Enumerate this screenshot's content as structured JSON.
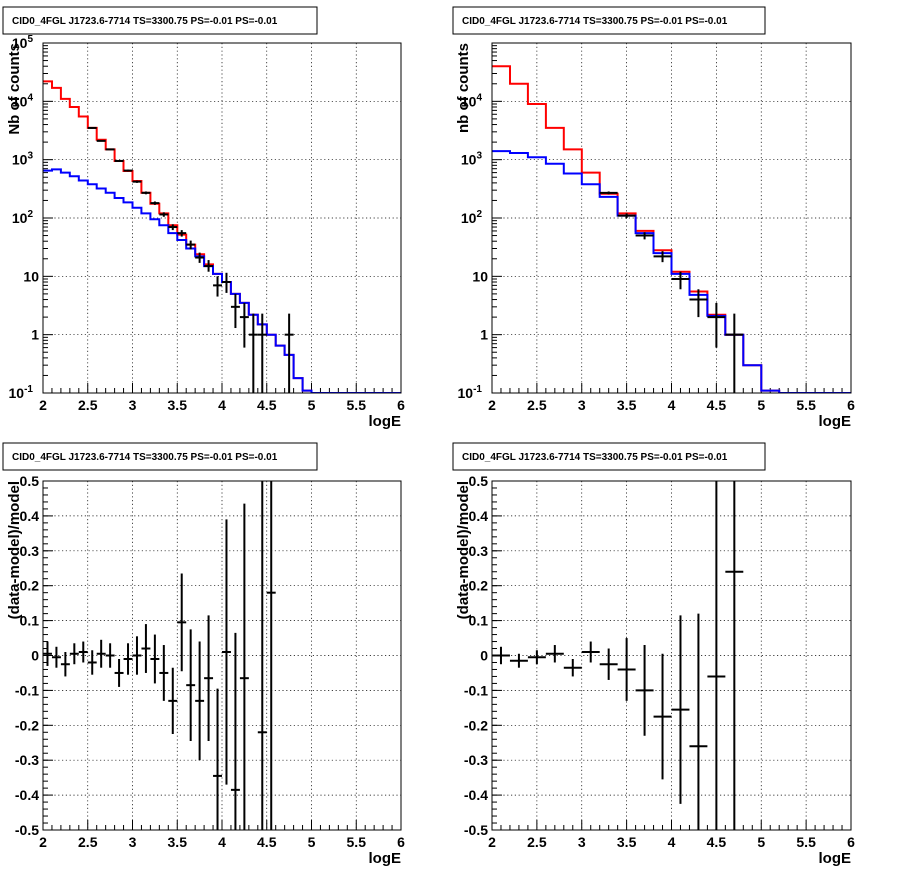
{
  "panel_title": "CID0_4FGL J1723.6-7714 TS=3300.75 PS=-0.01 PS=-0.01",
  "colors": {
    "model_total": "#ff0000",
    "model_background": "#0000ff",
    "data": "#000000"
  },
  "chart_data": [
    {
      "type": "line",
      "subtype": "histogram with error bars",
      "title": "CID0_4FGL J1723.6-7714 TS=3300.75 PS=-0.01 PS=-0.01",
      "xlabel": "logE",
      "ylabel": "Nb of counts",
      "xlim": [
        2,
        6
      ],
      "ylim": [
        0.1,
        100000
      ],
      "yscale": "log",
      "grid": true,
      "x_ticks": [
        "2",
        "2.5",
        "3",
        "3.5",
        "4",
        "4.5",
        "5",
        "5.5",
        "6"
      ],
      "y_ticks": [
        "10^-1",
        "1",
        "10",
        "10^2",
        "10^3",
        "10^4",
        "10^5"
      ],
      "bin_edges": [
        2.0,
        2.1,
        2.2,
        2.3,
        2.4,
        2.5,
        2.6,
        2.7,
        2.8,
        2.9,
        3.0,
        3.1,
        3.2,
        3.3,
        3.4,
        3.5,
        3.6,
        3.7,
        3.8,
        3.9,
        4.0,
        4.1,
        4.2,
        4.3,
        4.4,
        4.5,
        4.6,
        4.7,
        4.8,
        4.9,
        5.0,
        5.1,
        5.2,
        5.3,
        5.4,
        5.5,
        5.6,
        5.7,
        5.8,
        5.9,
        6.0
      ],
      "series": [
        {
          "style": "step",
          "color": "#ff0000",
          "values": [
            22000,
            17000,
            11000,
            8000,
            5500,
            3500,
            2200,
            1500,
            950,
            640,
            430,
            270,
            175,
            120,
            75,
            52,
            35,
            24,
            16,
            11,
            8,
            5,
            3.5,
            2.2,
            1.5,
            1,
            0.65,
            0.45,
            0.18,
            0.11,
            0.1,
            0.1,
            0.1,
            0.1,
            0.1,
            0.1,
            0.1,
            0.1,
            0.1,
            0.1
          ]
        },
        {
          "style": "step",
          "color": "#0000ff",
          "values": [
            650,
            680,
            600,
            520,
            440,
            380,
            320,
            270,
            220,
            185,
            150,
            120,
            95,
            75,
            55,
            42,
            30,
            22,
            15,
            11,
            8,
            5,
            3.5,
            2.2,
            1.5,
            1,
            0.65,
            0.45,
            0.18,
            0.11,
            0.1,
            0.1,
            0.1,
            0.1,
            0.1,
            0.1,
            0.1,
            0.1,
            0.1,
            0.1
          ]
        },
        {
          "style": "points",
          "color": "#000000",
          "x": [
            2.55,
            2.65,
            2.75,
            2.85,
            2.95,
            3.05,
            3.15,
            3.25,
            3.35,
            3.45,
            3.55,
            3.65,
            3.75,
            3.85,
            3.95,
            4.05,
            4.15,
            4.25,
            4.35,
            4.45,
            4.75
          ],
          "y": [
            3500,
            2100,
            1500,
            950,
            650,
            420,
            270,
            180,
            115,
            70,
            55,
            35,
            21,
            15,
            7,
            8,
            3,
            2,
            1,
            1,
            1
          ],
          "y_low": [
            3400,
            2050,
            1460,
            920,
            625,
            400,
            255,
            168,
            105,
            62,
            48,
            29,
            17,
            12,
            4.5,
            5.2,
            1.3,
            0.6,
            0.1,
            0.1,
            0.1
          ],
          "y_high": [
            3600,
            2150,
            1540,
            980,
            675,
            440,
            285,
            192,
            125,
            78,
            62,
            41,
            25.5,
            19,
            10,
            11.5,
            5,
            3.5,
            2.3,
            2.3,
            2.3
          ]
        }
      ]
    },
    {
      "type": "line",
      "subtype": "histogram with error bars",
      "title": "CID0_4FGL J1723.6-7714 TS=3300.75 PS=-0.01 PS=-0.01",
      "xlabel": "logE",
      "ylabel": "nb of counts",
      "xlim": [
        2,
        6
      ],
      "ylim": [
        0.1,
        100000
      ],
      "yscale": "log",
      "grid": true,
      "x_ticks": [
        "2",
        "2.5",
        "3",
        "3.5",
        "4",
        "4.5",
        "5",
        "5.5",
        "6"
      ],
      "y_ticks": [
        "10^-1",
        "1",
        "10",
        "10^2",
        "10^3",
        "10^4"
      ],
      "bin_edges": [
        2.0,
        2.2,
        2.4,
        2.6,
        2.8,
        3.0,
        3.2,
        3.4,
        3.6,
        3.8,
        4.0,
        4.2,
        4.4,
        4.6,
        4.8,
        5.0,
        5.2,
        5.4,
        5.6,
        5.8,
        6.0
      ],
      "series": [
        {
          "style": "step",
          "color": "#ff0000",
          "values": [
            40000,
            20000,
            9000,
            3500,
            1500,
            600,
            260,
            120,
            60,
            28,
            12,
            5.5,
            2.2,
            1.0,
            0.3,
            0.11,
            0.1,
            0.1,
            0.1,
            0.1
          ]
        },
        {
          "style": "step",
          "color": "#0000ff",
          "values": [
            1400,
            1300,
            1100,
            850,
            580,
            380,
            230,
            110,
            55,
            25,
            11,
            4.8,
            2.1,
            1.0,
            0.3,
            0.11,
            0.1,
            0.1,
            0.1,
            0.1
          ]
        },
        {
          "style": "points",
          "color": "#000000",
          "x": [
            3.3,
            3.5,
            3.7,
            3.9,
            4.1,
            4.3,
            4.5,
            4.7
          ],
          "y": [
            270,
            110,
            50,
            22,
            9,
            4,
            2,
            1
          ],
          "y_low": [
            255,
            100,
            43,
            17.5,
            6,
            2,
            0.6,
            0.1
          ],
          "y_high": [
            285,
            120,
            57,
            27,
            12,
            6,
            3.5,
            2.3
          ]
        }
      ]
    },
    {
      "type": "scatter",
      "subtype": "points with error bars",
      "title": "CID0_4FGL J1723.6-7714 TS=3300.75 PS=-0.01 PS=-0.01",
      "xlabel": "logE",
      "ylabel": "(data-model)/model",
      "xlim": [
        2,
        6
      ],
      "ylim": [
        -0.5,
        0.5
      ],
      "grid": true,
      "x_ticks": [
        "2",
        "2.5",
        "3",
        "3.5",
        "4",
        "4.5",
        "5",
        "5.5",
        "6"
      ],
      "y_ticks": [
        "-0.5",
        "-0.4",
        "-0.3",
        "-0.2",
        "-0.1",
        "0",
        "0.1",
        "0.2",
        "0.3",
        "0.4",
        "0.5"
      ],
      "x_half_width": 0.05,
      "series": [
        {
          "color": "#000000",
          "x": [
            2.05,
            2.15,
            2.25,
            2.35,
            2.45,
            2.55,
            2.65,
            2.75,
            2.85,
            2.95,
            3.05,
            3.15,
            3.25,
            3.35,
            3.45,
            3.55,
            3.65,
            3.75,
            3.85,
            3.95,
            4.05,
            4.15,
            4.25,
            4.45,
            4.55
          ],
          "y": [
            0.005,
            -0.005,
            -0.025,
            0.005,
            0.01,
            -0.02,
            0.005,
            0.0,
            -0.05,
            -0.01,
            0.0,
            0.02,
            -0.01,
            -0.05,
            -0.13,
            0.095,
            -0.085,
            -0.13,
            -0.065,
            -0.345,
            0.01,
            -0.385,
            -0.065,
            -0.22,
            0.18
          ],
          "err": [
            0.035,
            0.03,
            0.035,
            0.03,
            0.03,
            0.035,
            0.04,
            0.035,
            0.04,
            0.045,
            0.055,
            0.07,
            0.07,
            0.08,
            0.095,
            0.14,
            0.16,
            0.17,
            0.18,
            0.25,
            0.38,
            0.45,
            0.5,
            0.9,
            0.9
          ]
        }
      ]
    },
    {
      "type": "scatter",
      "subtype": "points with error bars",
      "title": "CID0_4FGL J1723.6-7714 TS=3300.75 PS=-0.01 PS=-0.01",
      "xlabel": "logE",
      "ylabel": "(data-model)/model",
      "xlim": [
        2,
        6
      ],
      "ylim": [
        -0.5,
        0.5
      ],
      "grid": true,
      "x_ticks": [
        "2",
        "2.5",
        "3",
        "3.5",
        "4",
        "4.5",
        "5",
        "5.5",
        "6"
      ],
      "y_ticks": [
        "-0.5",
        "-0.4",
        "-0.3",
        "-0.2",
        "-0.1",
        "0",
        "0.1",
        "0.2",
        "0.3",
        "0.4",
        "0.5"
      ],
      "x_half_width": 0.1,
      "series": [
        {
          "color": "#000000",
          "x": [
            2.1,
            2.3,
            2.5,
            2.7,
            2.9,
            3.1,
            3.3,
            3.5,
            3.7,
            3.9,
            4.1,
            4.3,
            4.5,
            4.7
          ],
          "y": [
            0.0,
            -0.015,
            -0.005,
            0.005,
            -0.035,
            0.01,
            -0.025,
            -0.04,
            -0.1,
            -0.175,
            -0.155,
            -0.26,
            -0.06,
            0.24
          ],
          "err": [
            0.025,
            0.02,
            0.02,
            0.025,
            0.025,
            0.03,
            0.045,
            0.09,
            0.13,
            0.18,
            0.27,
            0.38,
            0.8,
            0.9
          ]
        }
      ]
    }
  ]
}
